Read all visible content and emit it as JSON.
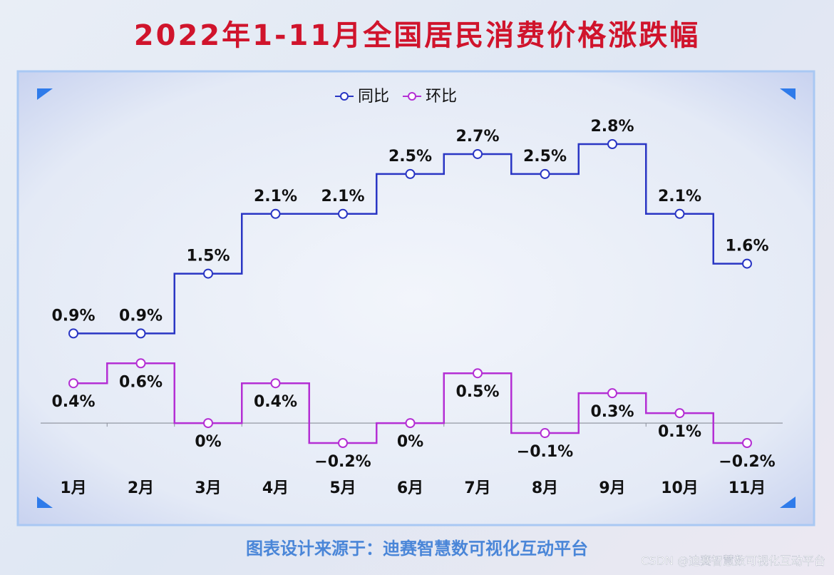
{
  "chart_data": {
    "type": "step-line",
    "title": "2022年1-11月全国居民消费价格涨跌幅",
    "categories": [
      "1月",
      "2月",
      "3月",
      "4月",
      "5月",
      "6月",
      "7月",
      "8月",
      "9月",
      "10月",
      "11月"
    ],
    "series": [
      {
        "name": "同比",
        "color": "#2a36c4",
        "values": [
          0.9,
          0.9,
          1.5,
          2.1,
          2.1,
          2.5,
          2.7,
          2.5,
          2.8,
          2.1,
          1.6
        ],
        "value_labels": [
          "0.9%",
          "0.9%",
          "1.5%",
          "2.1%",
          "2.1%",
          "2.5%",
          "2.7%",
          "2.5%",
          "2.8%",
          "2.1%",
          "1.6%"
        ]
      },
      {
        "name": "环比",
        "color": "#b42fd4",
        "values": [
          0.4,
          0.6,
          0,
          0.4,
          -0.2,
          0,
          0.5,
          -0.1,
          0.3,
          0.1,
          -0.2
        ],
        "value_labels": [
          "0.4%",
          "0.6%",
          "0%",
          "0.4%",
          "−0.2%",
          "0%",
          "0.5%",
          "−0.1%",
          "0.3%",
          "0.1%",
          "−0.2%"
        ]
      }
    ],
    "legend": "top",
    "source": "图表设计来源于：迪赛智慧数可视化互动平台",
    "watermark": "CSDN @迪赛智慧数可视化互动平台"
  }
}
